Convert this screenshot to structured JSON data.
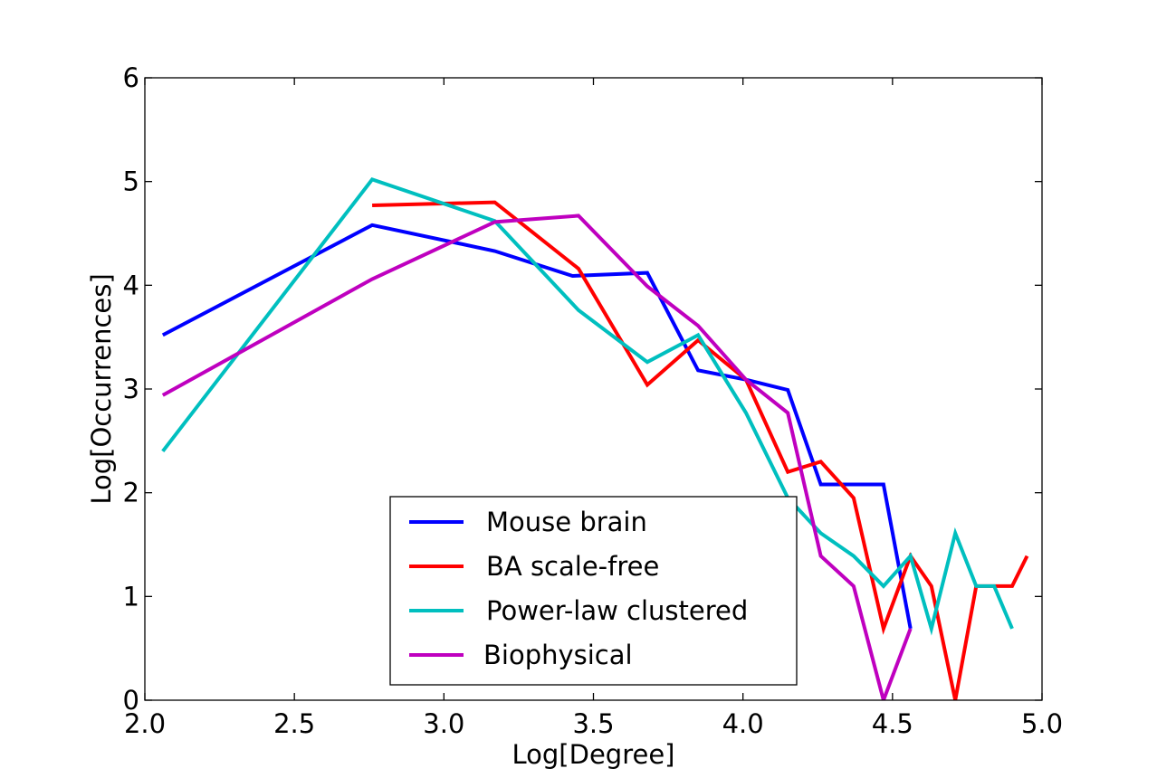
{
  "chart_data": {
    "type": "line",
    "title": "",
    "xlabel": "Log[Degree]",
    "ylabel": "Log[Occurrences]",
    "xlim": [
      2.0,
      5.0
    ],
    "ylim": [
      0,
      6
    ],
    "xticks": [
      "2.0",
      "2.5",
      "3.0",
      "3.5",
      "4.0",
      "4.5",
      "5.0"
    ],
    "yticks": [
      "0",
      "1",
      "2",
      "3",
      "4",
      "5",
      "6"
    ],
    "grid": false,
    "legend_position": "lower-center",
    "series": [
      {
        "name": "Mouse brain",
        "color": "#0000ff",
        "x": [
          2.06,
          2.76,
          3.17,
          3.43,
          3.68,
          3.85,
          4.01,
          4.15,
          4.26,
          4.37,
          4.47,
          4.56
        ],
        "y": [
          3.52,
          4.58,
          4.33,
          4.09,
          4.12,
          3.18,
          3.09,
          2.99,
          2.08,
          2.08,
          2.08,
          0.69
        ]
      },
      {
        "name": "BA scale-free",
        "color": "#ff0000",
        "x": [
          2.76,
          3.17,
          3.45,
          3.68,
          3.85,
          4.01,
          4.15,
          4.26,
          4.37,
          4.47,
          4.56,
          4.63,
          4.71,
          4.78,
          4.84,
          4.9,
          4.95
        ],
        "y": [
          4.77,
          4.8,
          4.16,
          3.04,
          3.47,
          3.09,
          2.2,
          2.3,
          1.95,
          0.69,
          1.39,
          1.1,
          0.0,
          1.1,
          1.1,
          1.1,
          1.39
        ]
      },
      {
        "name": "Power-law clustered",
        "color": "#00bfbf",
        "x": [
          2.06,
          2.76,
          3.17,
          3.45,
          3.68,
          3.85,
          4.01,
          4.15,
          4.26,
          4.37,
          4.47,
          4.56,
          4.63,
          4.71,
          4.78,
          4.84,
          4.9
        ],
        "y": [
          2.4,
          5.02,
          4.62,
          3.76,
          3.26,
          3.52,
          2.77,
          1.95,
          1.61,
          1.39,
          1.1,
          1.39,
          0.69,
          1.61,
          1.1,
          1.1,
          0.69
        ]
      },
      {
        "name": "Biophysical",
        "color": "#bf00bf",
        "x": [
          2.06,
          2.76,
          3.17,
          3.45,
          3.68,
          3.85,
          4.01,
          4.15,
          4.26,
          4.37,
          4.47,
          4.56
        ],
        "y": [
          2.94,
          4.06,
          4.61,
          4.67,
          3.99,
          3.61,
          3.09,
          2.77,
          1.39,
          1.1,
          0.0,
          0.69
        ]
      }
    ]
  }
}
